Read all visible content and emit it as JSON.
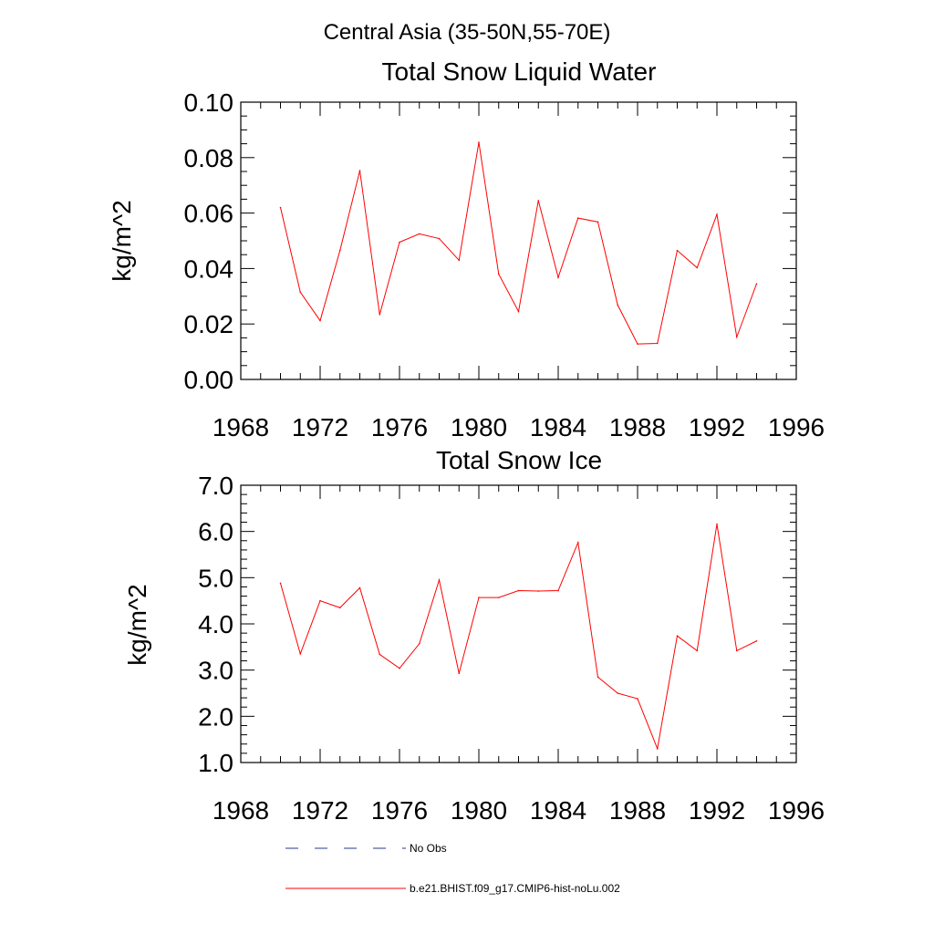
{
  "suptitle": "Central Asia (35-50N,55-70E)",
  "colors": {
    "model_line": "#ff0000",
    "obs_line": "#2a3a8c",
    "axis": "#000000"
  },
  "chart_data": [
    {
      "type": "line",
      "title": "Total Snow Liquid Water",
      "xlabel": "",
      "ylabel": "kg/m^2",
      "xlim": [
        1968,
        1996
      ],
      "ylim": [
        0.0,
        0.1
      ],
      "xticks": [
        1968,
        1972,
        1976,
        1980,
        1984,
        1988,
        1992,
        1996
      ],
      "xtick_labels": [
        "1968",
        "1972",
        "1976",
        "1980",
        "1984",
        "1988",
        "1992",
        "1996"
      ],
      "yticks": [
        0.0,
        0.02,
        0.04,
        0.06,
        0.08,
        0.1
      ],
      "ytick_labels": [
        "0.00",
        "0.02",
        "0.04",
        "0.06",
        "0.08",
        "0.10"
      ],
      "y_minor_step": 0.005,
      "x": [
        1970,
        1971,
        1972,
        1973,
        1974,
        1975,
        1976,
        1977,
        1978,
        1979,
        1980,
        1981,
        1982,
        1983,
        1984,
        1985,
        1986,
        1987,
        1988,
        1989,
        1990,
        1991,
        1992,
        1993,
        1994
      ],
      "series": [
        {
          "name": "b.e21.BHIST.f09_g17.CMIP6-hist-noLu.002",
          "values": [
            0.062,
            0.0315,
            0.0212,
            0.0465,
            0.0753,
            0.0234,
            0.0495,
            0.0525,
            0.0508,
            0.043,
            0.0855,
            0.038,
            0.0245,
            0.0645,
            0.0368,
            0.0582,
            0.0568,
            0.0268,
            0.0128,
            0.013,
            0.0465,
            0.0403,
            0.0595,
            0.0153,
            0.0345
          ]
        }
      ],
      "grid": false
    },
    {
      "type": "line",
      "title": "Total Snow Ice",
      "xlabel": "",
      "ylabel": "kg/m^2",
      "xlim": [
        1968,
        1996
      ],
      "ylim": [
        1.0,
        7.0
      ],
      "xticks": [
        1968,
        1972,
        1976,
        1980,
        1984,
        1988,
        1992,
        1996
      ],
      "xtick_labels": [
        "1968",
        "1972",
        "1976",
        "1980",
        "1984",
        "1988",
        "1992",
        "1996"
      ],
      "yticks": [
        1.0,
        2.0,
        3.0,
        4.0,
        5.0,
        6.0,
        7.0
      ],
      "ytick_labels": [
        "1.0",
        "2.0",
        "3.0",
        "4.0",
        "5.0",
        "6.0",
        "7.0"
      ],
      "y_minor_step": 0.2,
      "x": [
        1970,
        1971,
        1972,
        1973,
        1974,
        1975,
        1976,
        1977,
        1978,
        1979,
        1980,
        1981,
        1982,
        1983,
        1984,
        1985,
        1986,
        1987,
        1988,
        1989,
        1990,
        1991,
        1992,
        1993,
        1994
      ],
      "series": [
        {
          "name": "b.e21.BHIST.f09_g17.CMIP6-hist-noLu.002",
          "values": [
            4.88,
            3.35,
            4.5,
            4.35,
            4.78,
            3.34,
            3.04,
            3.57,
            4.95,
            2.93,
            4.57,
            4.57,
            4.72,
            4.71,
            4.72,
            5.76,
            2.85,
            2.5,
            2.38,
            1.3,
            3.74,
            3.42,
            6.16,
            3.42,
            3.63
          ]
        }
      ],
      "grid": false
    }
  ],
  "legend": {
    "placement": "bottom",
    "entries": [
      {
        "label": "No Obs",
        "style": "dashed"
      },
      {
        "label": "b.e21.BHIST.f09_g17.CMIP6-hist-noLu.002",
        "style": "solid"
      }
    ]
  }
}
